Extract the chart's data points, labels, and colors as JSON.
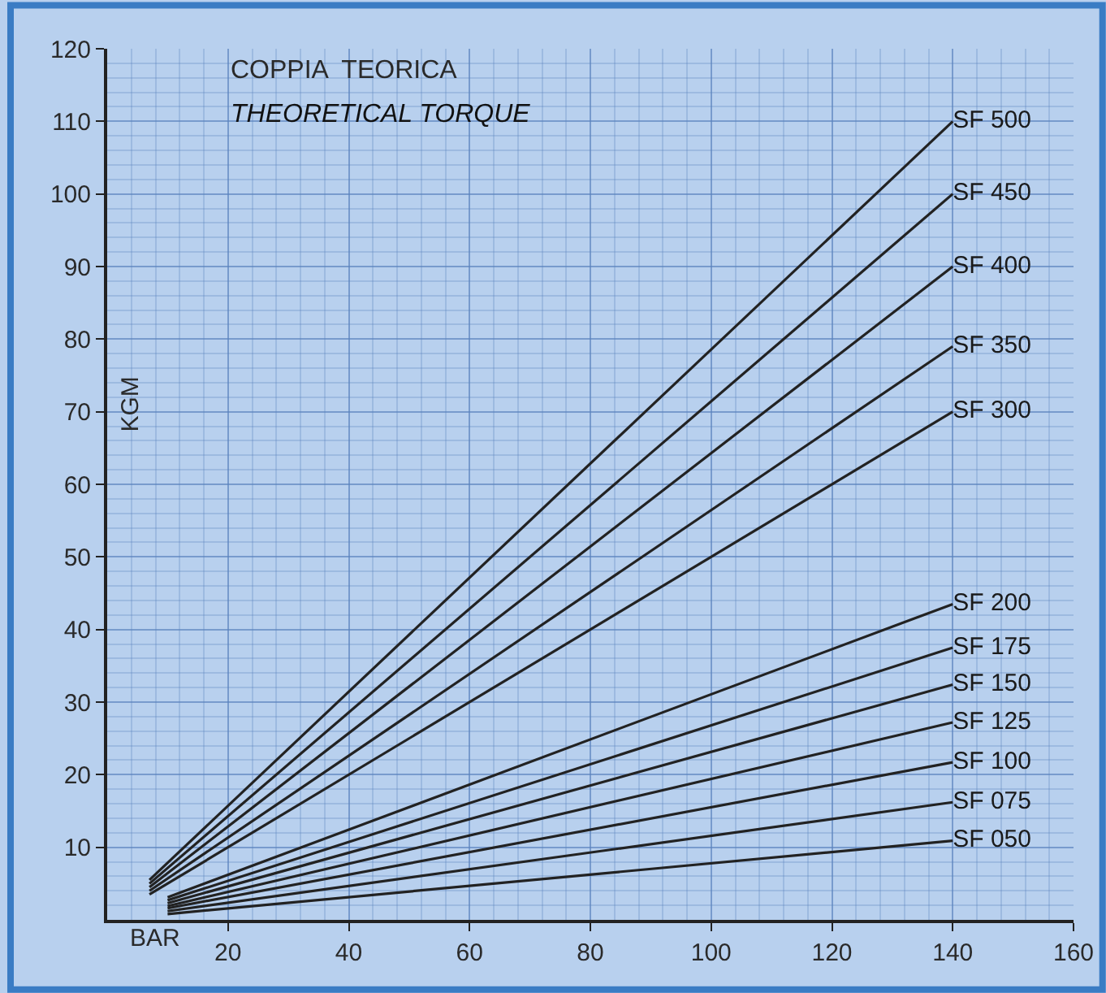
{
  "chart_data": {
    "type": "line",
    "title": "COPPIA  TEORICA",
    "subtitle": "THEORETICAL TORQUE",
    "xlabel": "BAR",
    "ylabel": "KGM",
    "xlim": [
      0,
      160
    ],
    "ylim": [
      0,
      120
    ],
    "xticks": [
      20,
      40,
      60,
      80,
      100,
      120,
      140,
      160
    ],
    "yticks": [
      10,
      20,
      30,
      40,
      50,
      60,
      70,
      80,
      90,
      100,
      110,
      120
    ],
    "grid": true,
    "legend": false,
    "marker": "none",
    "line_style": "solid",
    "series": [
      {
        "name": "SF 500",
        "color": "#222222",
        "x": [
          7,
          140
        ],
        "values": [
          5.5,
          110
        ]
      },
      {
        "name": "SF 450",
        "color": "#222222",
        "x": [
          7,
          140
        ],
        "values": [
          5,
          100
        ]
      },
      {
        "name": "SF 400",
        "color": "#222222",
        "x": [
          7,
          140
        ],
        "values": [
          4.5,
          90
        ]
      },
      {
        "name": "SF 350",
        "color": "#222222",
        "x": [
          7,
          140
        ],
        "values": [
          4,
          79
        ]
      },
      {
        "name": "SF 300",
        "color": "#222222",
        "x": [
          7,
          140
        ],
        "values": [
          3.5,
          70
        ]
      },
      {
        "name": "SF 200",
        "color": "#222222",
        "x": [
          10,
          140
        ],
        "values": [
          3.1,
          43.5
        ]
      },
      {
        "name": "SF 175",
        "color": "#222222",
        "x": [
          10,
          140
        ],
        "values": [
          2.7,
          37.5
        ]
      },
      {
        "name": "SF 150",
        "color": "#222222",
        "x": [
          10,
          140
        ],
        "values": [
          2.3,
          32.4
        ]
      },
      {
        "name": "SF 125",
        "color": "#222222",
        "x": [
          10,
          140
        ],
        "values": [
          1.9,
          27.2
        ]
      },
      {
        "name": "SF 100",
        "color": "#222222",
        "x": [
          10,
          140
        ],
        "values": [
          1.6,
          21.7
        ]
      },
      {
        "name": "SF 075",
        "color": "#222222",
        "x": [
          10,
          140
        ],
        "values": [
          1.2,
          16.2
        ]
      },
      {
        "name": "SF 050",
        "color": "#222222",
        "x": [
          10,
          140
        ],
        "values": [
          0.8,
          10.9
        ]
      }
    ]
  }
}
